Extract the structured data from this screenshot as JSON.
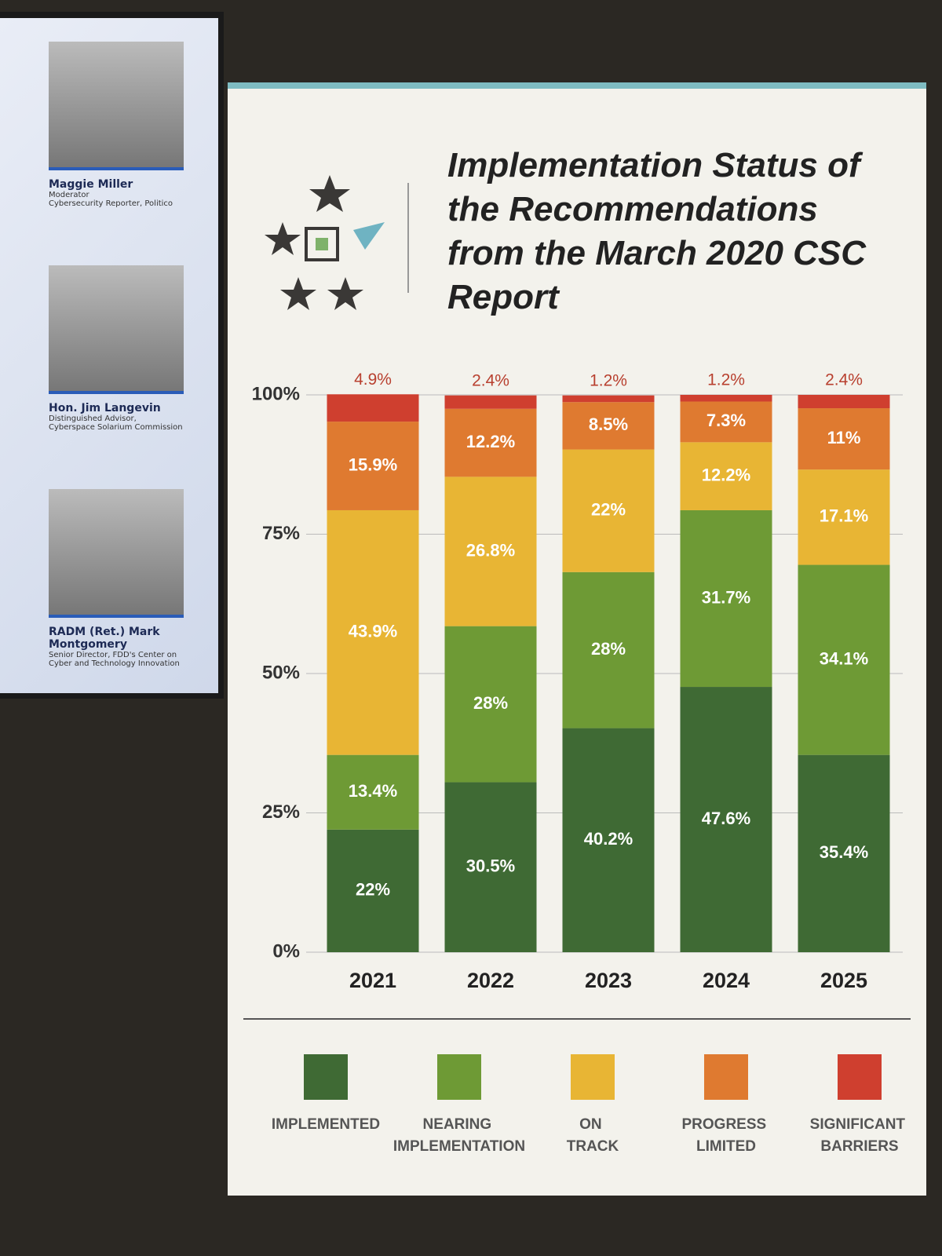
{
  "screen": {
    "speakers": [
      {
        "name": "Maggie Miller",
        "role": "Moderator",
        "affiliation": "Cybersecurity Reporter, Politico"
      },
      {
        "name": "Hon. Jim Langevin",
        "role": "Distinguished Advisor,",
        "affiliation": "Cyberspace Solarium Commission"
      },
      {
        "name": "RADM (Ret.) Mark Montgomery",
        "role": "Senior Director, FDD's Center on",
        "affiliation": "Cyber and Technology Innovation"
      }
    ]
  },
  "chart_data": {
    "type": "stacked-bar",
    "title": "Implementation Status of the Recommendations from the March 2020 CSC Report",
    "categories": [
      "2021",
      "2022",
      "2023",
      "2024",
      "2025"
    ],
    "series": [
      {
        "name": "IMPLEMENTED",
        "color": "#3f6a34",
        "values": [
          22,
          30.5,
          40.2,
          47.6,
          35.4
        ],
        "value_labels": [
          "22%",
          "30.5%",
          "40.2%",
          "47.6%",
          "35.4%"
        ]
      },
      {
        "name": "NEARING IMPLEMENTATION",
        "color": "#6e9a35",
        "values": [
          13.4,
          28,
          28,
          31.7,
          34.1
        ],
        "value_labels": [
          "13.4%",
          "28%",
          "28%",
          "31.7%",
          "34.1%"
        ]
      },
      {
        "name": "ON TRACK",
        "color": "#e8b534",
        "values": [
          43.9,
          26.8,
          22,
          12.2,
          17.1
        ],
        "value_labels": [
          "43.9%",
          "26.8%",
          "22%",
          "12.2%",
          "17.1%"
        ]
      },
      {
        "name": "PROGRESS LIMITED",
        "color": "#df7a30",
        "values": [
          15.9,
          12.2,
          8.5,
          7.3,
          11
        ],
        "value_labels": [
          "15.9%",
          "12.2%",
          "8.5%",
          "7.3%",
          "11%"
        ]
      },
      {
        "name": "SIGNIFICANT BARRIERS",
        "color": "#cf3f2f",
        "values": [
          4.9,
          2.4,
          1.2,
          1.2,
          2.4
        ],
        "value_labels": [
          "4.9%",
          "2.4%",
          "1.2%",
          "1.2%",
          "2.4%"
        ]
      }
    ],
    "ylim": [
      0,
      100
    ],
    "yticks": [
      {
        "value": 0,
        "label": "0%"
      },
      {
        "value": 25,
        "label": "25%"
      },
      {
        "value": 50,
        "label": "50%"
      },
      {
        "value": 75,
        "label": "75%"
      },
      {
        "value": 100,
        "label": "100%"
      }
    ],
    "grid": true
  }
}
